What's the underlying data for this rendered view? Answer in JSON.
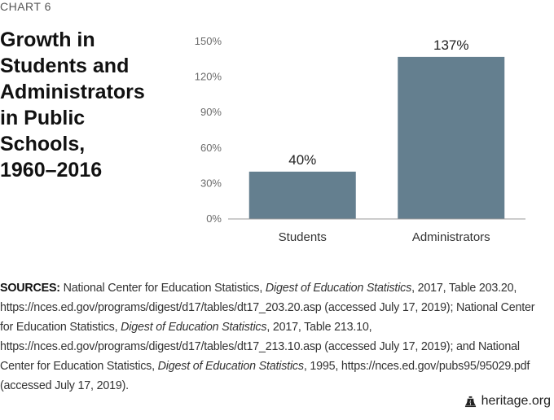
{
  "header": {
    "chart_number": "CHART 6",
    "title_lines": [
      "Growth in",
      "Students and",
      "Administrators",
      "in Public",
      "Schools,",
      "1960–2016"
    ]
  },
  "chart_data": {
    "type": "bar",
    "title": "Growth in Students and Administrators in Public Schools, 1960–2016",
    "categories": [
      "Students",
      "Administrators"
    ],
    "values": [
      40,
      137
    ],
    "data_labels": [
      "40%",
      "137%"
    ],
    "ylim": [
      0,
      150
    ],
    "yticks": [
      0,
      30,
      60,
      90,
      120,
      150
    ],
    "ytick_labels": [
      "0%",
      "30%",
      "60%",
      "90%",
      "120%",
      "150%"
    ],
    "xlabel": "",
    "ylabel": "",
    "grid": false,
    "bar_color": "#647f8f"
  },
  "sources": {
    "label": "SOURCES:",
    "parts": [
      {
        "text": " National Center for Education Statistics, ",
        "italic": false
      },
      {
        "text": "Digest of Education Statistics",
        "italic": true
      },
      {
        "text": ", 2017, Table 203.20, https://nces.ed.gov/programs/digest/d17/tables/dt17_203.20.asp (accessed July 17, 2019); National Center for Education Statistics, ",
        "italic": false
      },
      {
        "text": "Digest of Education Statistics",
        "italic": true
      },
      {
        "text": ", 2017, Table 213.10, https://nces.ed.gov/programs/digest/d17/tables/dt17_213.10.asp (accessed July 17, 2019); and National Center for Education Statistics, ",
        "italic": false
      },
      {
        "text": "Digest of Education Statistics",
        "italic": true
      },
      {
        "text": ", 1995, https://nces.ed.gov/pubs95/95029.pdf (accessed July 17, 2019).",
        "italic": false
      }
    ]
  },
  "footer": {
    "site": "heritage.org",
    "icon": "liberty-bell-icon"
  }
}
